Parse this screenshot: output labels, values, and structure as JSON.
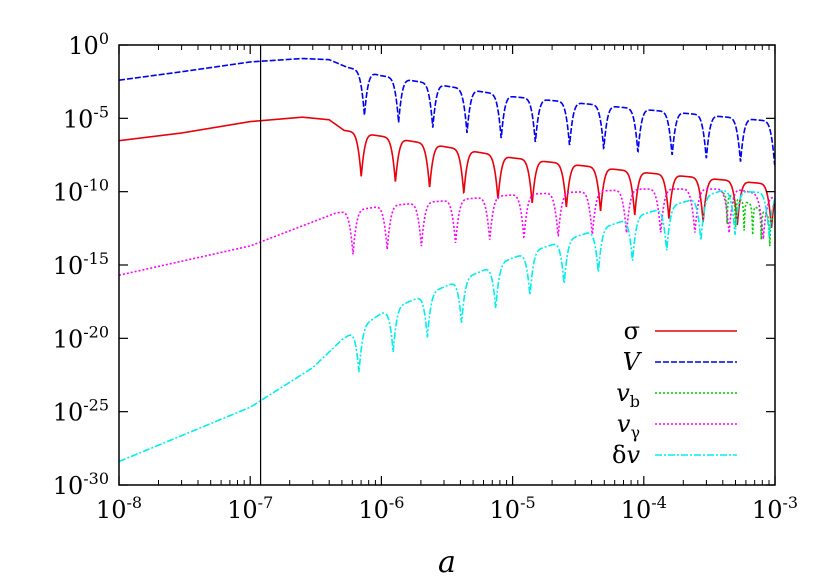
{
  "chart_data": {
    "type": "line",
    "title": "",
    "xlabel": "a",
    "ylabel": "",
    "x_scale": "log",
    "y_scale": "log",
    "xlim": [
      1e-08,
      0.001
    ],
    "ylim": [
      1e-30,
      1
    ],
    "x_ticks": [
      {
        "base": "10",
        "exp": "-8",
        "value": 1e-08
      },
      {
        "base": "10",
        "exp": "-7",
        "value": 1e-07
      },
      {
        "base": "10",
        "exp": "-6",
        "value": 1e-06
      },
      {
        "base": "10",
        "exp": "-5",
        "value": 1e-05
      },
      {
        "base": "10",
        "exp": "-4",
        "value": 0.0001
      },
      {
        "base": "10",
        "exp": "-3",
        "value": 0.001
      }
    ],
    "y_ticks": [
      {
        "base": "10",
        "exp": "0",
        "value": 1
      },
      {
        "base": "10",
        "exp": "-5",
        "value": 1e-05
      },
      {
        "base": "10",
        "exp": "-10",
        "value": 1e-10
      },
      {
        "base": "10",
        "exp": "-15",
        "value": 1e-15
      },
      {
        "base": "10",
        "exp": "-20",
        "value": 1e-20
      },
      {
        "base": "10",
        "exp": "-25",
        "value": 1e-25
      },
      {
        "base": "10",
        "exp": "-30",
        "value": 1e-30
      }
    ],
    "vertical_line_x": 1.2e-07,
    "grid": false,
    "legend_position": "bottom-right",
    "series": [
      {
        "name": "σ",
        "label_main": "σ",
        "label_sub": "",
        "italic": false,
        "color": "#e8000b",
        "dash": "none",
        "x": [
          1e-08,
          3e-08,
          1e-07,
          2.5e-07,
          4e-07,
          5.2e-07,
          1e-06,
          1e-05,
          0.0001,
          0.001
        ],
        "y": [
          3e-07,
          1e-06,
          6e-06,
          1.2e-05,
          8e-06,
          1.5e-06,
          6e-07,
          2e-08,
          2e-09,
          3e-10
        ],
        "osc_start": 5.2e-07,
        "osc_period_lnx": 0.6,
        "osc_depth_decades": 3.0
      },
      {
        "name": "V",
        "label_main": "V",
        "label_sub": "",
        "italic": true,
        "color": "#0000ee",
        "dash": "6,2",
        "x": [
          1e-08,
          3e-08,
          1e-07,
          2.5e-07,
          4e-07,
          5.5e-07,
          1e-06,
          1e-05,
          0.0001,
          0.001
        ],
        "y": [
          0.004,
          0.015,
          0.07,
          0.12,
          0.1,
          0.03,
          0.008,
          0.0003,
          4e-05,
          6e-06
        ],
        "osc_start": 5.5e-07,
        "osc_period_lnx": 0.6,
        "osc_depth_decades": 3.0
      },
      {
        "name": "v_b",
        "label_main": "v",
        "label_sub": "b",
        "italic": true,
        "color": "#00cc00",
        "dash": "2,2",
        "x": [
          0.0004,
          0.0006,
          0.0008,
          0.001
        ],
        "y": [
          8e-11,
          2e-11,
          5e-12,
          1e-12
        ],
        "osc_start": 0.0004,
        "osc_period_lnx": 0.15,
        "osc_depth_decades": 2.0
      },
      {
        "name": "v_γ",
        "label_main": "v",
        "label_sub": "γ",
        "italic": true,
        "color": "#ff00ff",
        "dash": "2,2",
        "x": [
          1e-08,
          1e-07,
          2.2e-07,
          4.5e-07,
          1e-06,
          1e-05,
          0.0001,
          0.0005,
          0.001
        ],
        "y": [
          2e-16,
          2e-14,
          3e-13,
          3.5e-12,
          1e-11,
          6e-11,
          1.5e-10,
          1.5e-10,
          4e-11
        ],
        "osc_start": 4.5e-07,
        "osc_period_lnx": 0.6,
        "osc_depth_decades": 3.0
      },
      {
        "name": "δv",
        "label_main": "δ",
        "label_sub": "",
        "label_tail": "v",
        "italic": false,
        "color": "#00eeee",
        "dash": "7,2,2,2",
        "x": [
          1e-08,
          1e-07,
          3e-07,
          5e-07,
          1e-06,
          1e-05,
          0.0001,
          0.0004,
          0.001
        ],
        "y": [
          4e-29,
          2e-25,
          1e-22,
          8e-21,
          5e-19,
          3e-15,
          3e-12,
          1.2e-10,
          8e-11
        ],
        "osc_start": 5e-07,
        "osc_period_lnx": 0.6,
        "osc_depth_decades": 3.0
      }
    ]
  }
}
